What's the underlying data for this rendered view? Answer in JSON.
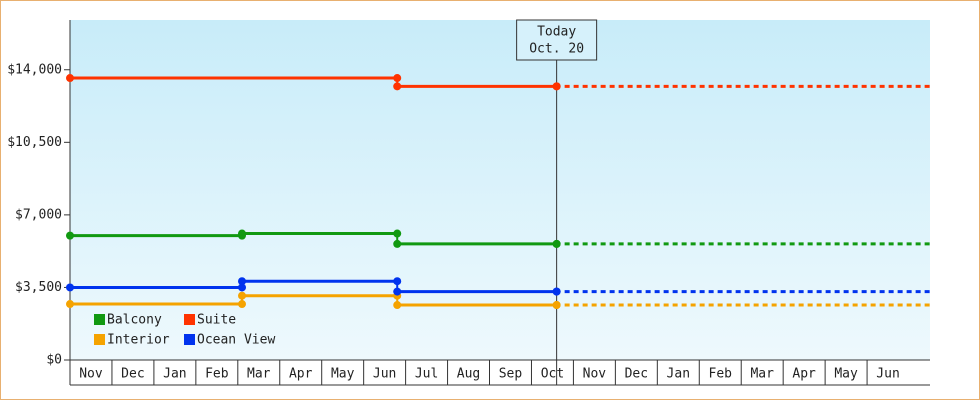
{
  "chart_data": {
    "type": "step",
    "annotation": {
      "x": 11.6,
      "title": "Today",
      "label": "Oct. 20"
    },
    "categories": [
      "Nov",
      "Dec",
      "Jan",
      "Feb",
      "Mar",
      "Apr",
      "May",
      "Jun",
      "Jul",
      "Aug",
      "Sep",
      "Oct",
      "Nov",
      "Dec",
      "Jan",
      "Feb",
      "Mar",
      "Apr",
      "May",
      "Jun"
    ],
    "xlim": [
      0,
      20.5
    ],
    "ylim": [
      0,
      16400
    ],
    "yticks": [
      {
        "value": 0,
        "label": "$0"
      },
      {
        "value": 3500,
        "label": "$3,500"
      },
      {
        "value": 7000,
        "label": "$7,000"
      },
      {
        "value": 10500,
        "label": "$10,500"
      },
      {
        "value": 14000,
        "label": "$14,000"
      }
    ],
    "legend": "lower left",
    "series": [
      {
        "name": "Balcony",
        "color": "#119911",
        "x": [
          0,
          4.1,
          7.8,
          11.6
        ],
        "values": [
          6000,
          6100,
          5600,
          5600
        ]
      },
      {
        "name": "Suite",
        "color": "#ff3300",
        "x": [
          0,
          7.8,
          11.6
        ],
        "values": [
          13600,
          13200,
          13200
        ]
      },
      {
        "name": "Interior",
        "color": "#f5a300",
        "x": [
          0,
          4.1,
          7.8,
          11.6
        ],
        "values": [
          2700,
          3100,
          2650,
          2650
        ]
      },
      {
        "name": "Ocean View",
        "color": "#0033ee",
        "x": [
          0,
          4.1,
          7.8,
          11.6
        ],
        "values": [
          3500,
          3800,
          3300,
          3300
        ]
      }
    ]
  }
}
